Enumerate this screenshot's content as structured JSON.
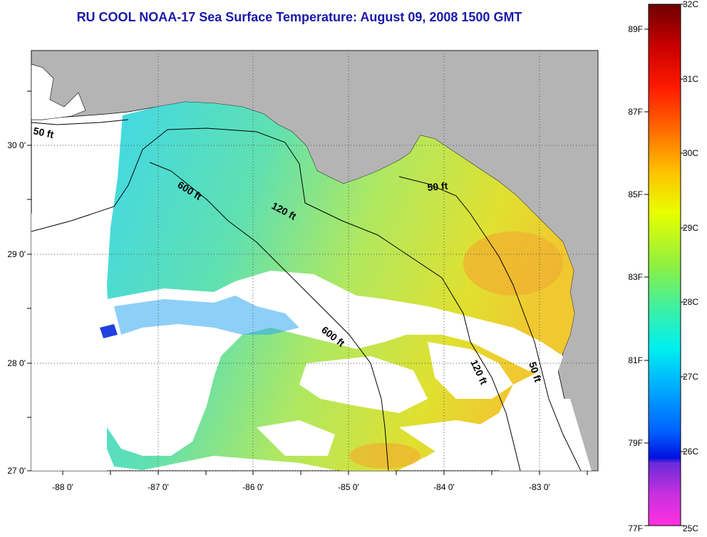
{
  "title": "RU COOL  NOAA-17  Sea Surface Temperature:  August 09, 2008 1500 GMT",
  "lon_labels": [
    "-88 0'",
    "-87 0'",
    "-86 0'",
    "-85 0'",
    "-84 0'",
    "-83 0'"
  ],
  "lat_labels": [
    "30 0'",
    "29 0'",
    "28 0'",
    "27 0'"
  ],
  "contour_labels": {
    "c50_west": "50 ft",
    "c600_north": "600 ft",
    "c120_north": "120 ft",
    "c50_east": "50 ft",
    "c600_south": "600 ft",
    "c120_south": "120 ft",
    "c50_south": "50 ft"
  },
  "colorbar": {
    "fahrenheit": [
      "89F",
      "87F",
      "85F",
      "83F",
      "81F",
      "79F",
      "77F"
    ],
    "celsius": [
      "32C",
      "31C",
      "30C",
      "29C",
      "28C",
      "27C",
      "26C",
      "25C"
    ]
  },
  "colors": {
    "title": "#1a1aa8",
    "land": "#b4b4b4",
    "no_data": "#ffffff",
    "grid": "#555555"
  }
}
